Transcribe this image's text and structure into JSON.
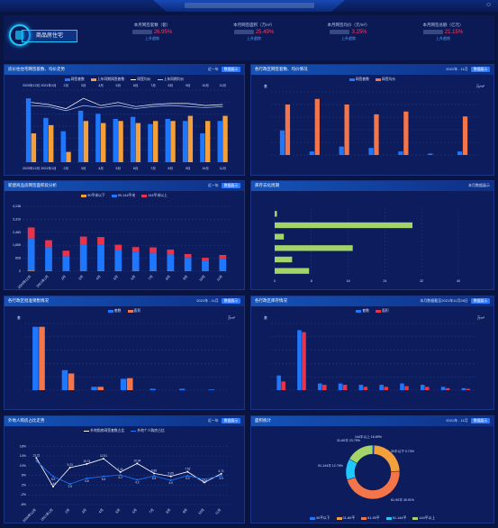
{
  "header": {
    "brand": "商品房住宅",
    "kpis": [
      {
        "label": "本月网签套数（套）",
        "value": "26.95%",
        "tag": "上升趋势"
      },
      {
        "label": "本月网签面积（万m²）",
        "value": "25.49%",
        "tag": "上升趋势"
      },
      {
        "label": "本月网签均价（元/m²）",
        "value": "3.25%",
        "tag": "上升趋势"
      },
      {
        "label": "本月网签总额（亿元）",
        "value": "21.15%",
        "tag": "上升趋势"
      }
    ]
  },
  "panels": {
    "p1": {
      "title": "房价住住宅网签套数、均价走势",
      "right": "近一年",
      "btn": "数据展示",
      "legend": [
        "网签套数",
        "上年同期网签套数",
        "网签均价",
        "上年同期均价"
      ]
    },
    "p2": {
      "title": "各行政区网签套数、均价情况",
      "right": "2021年 - 11月",
      "btn": "数据展示",
      "legend": [
        "网签套数",
        "网签均价"
      ],
      "unit_left": "套",
      "unit_right": "元/m²"
    },
    "p3": {
      "title": "新建商品房网签面积段分析",
      "right": "近一年",
      "btn": "数据展示",
      "legend": [
        "90平米以下",
        "90-144平米",
        "144平米以上"
      ]
    },
    "p4": {
      "title": "库存去化周期",
      "right": "本月数据展示"
    },
    "p5": {
      "title": "各行政区批准销售情况",
      "right": "2021年 - 11月",
      "btn": "数据展示",
      "legend": [
        "套数",
        "面积"
      ],
      "unit_left": "套",
      "unit_right": "万m²"
    },
    "p6": {
      "title": "各行政区库存情况",
      "right": "本月数据截至2021年11月28日",
      "btn": "数据展示",
      "legend": [
        "套数",
        "面积"
      ],
      "unit_left": "套",
      "unit_right": "万m²"
    },
    "p7": {
      "title": "外地人购房占比走势",
      "right": "近一年",
      "btn": "数据展示",
      "legend": [
        "外地购房网签套数占比",
        "外地个人购房占比"
      ]
    },
    "p8": {
      "title": "面积统计",
      "right": "2021年 - 11月",
      "btn": "数据展示",
      "legend": [
        "30平以下",
        "31-60平",
        "61-90平",
        "91-144平",
        "144平以上"
      ]
    }
  },
  "chart_data": [
    {
      "type": "bar",
      "title": "房价住住宅网签套数、均价走势",
      "categories": [
        "2020年12月",
        "2021年1月",
        "2月",
        "3月",
        "4月",
        "5月",
        "6月",
        "7月",
        "8月",
        "9月",
        "10月",
        "11月"
      ],
      "series": [
        {
          "name": "网签套数",
          "values": [
            62,
            43,
            30,
            50,
            47,
            42,
            44,
            37,
            42,
            40,
            28,
            40
          ]
        },
        {
          "name": "上年同期网签套数",
          "values": [
            28,
            36,
            10,
            40,
            38,
            40,
            38,
            40,
            40,
            45,
            40,
            45
          ]
        },
        {
          "name": "网签均价",
          "values": [
            58,
            56,
            52,
            62,
            55,
            58,
            54,
            56,
            57,
            57,
            55,
            56
          ]
        },
        {
          "name": "上年同期均价",
          "values": [
            55,
            54,
            50,
            55,
            53,
            55,
            52,
            54,
            55,
            54,
            53,
            54
          ]
        }
      ],
      "colors": [
        "#1e78ff",
        "#f4a03a",
        "#ffffff",
        "#a8c8ff"
      ]
    },
    {
      "type": "bar",
      "title": "各行政区网签套数、均价情况",
      "categories": [
        "",
        "",
        "",
        "",
        "",
        "",
        ""
      ],
      "series": [
        {
          "name": "网签套数",
          "values": [
            35,
            5,
            12,
            10,
            5,
            2,
            5
          ]
        },
        {
          "name": "网签均价",
          "values": [
            72,
            80,
            72,
            58,
            62,
            0,
            55
          ]
        }
      ],
      "colors": [
        "#1e78ff",
        "#f4754a"
      ]
    },
    {
      "type": "bar",
      "title": "新建商品房网签面积段分析",
      "categories": [
        "2020年12月",
        "2021年1月",
        "2月",
        "3月",
        "4月",
        "5月",
        "6月",
        "7月",
        "8月",
        "9月",
        "10月",
        "11月"
      ],
      "ylabels": [
        "0",
        "828",
        "1,655",
        "2,483",
        "3,310",
        "4,138"
      ],
      "series": [
        {
          "name": "90平米以下",
          "values": [
            40,
            20,
            10,
            20,
            20,
            20,
            20,
            20,
            20,
            15,
            15,
            15
          ]
        },
        {
          "name": "90-144平米",
          "values": [
            2050,
            1500,
            940,
            1650,
            1660,
            1300,
            1200,
            1150,
            1050,
            830,
            640,
            800
          ]
        },
        {
          "name": "144平米以上",
          "values": [
            700,
            460,
            360,
            540,
            500,
            370,
            320,
            350,
            310,
            250,
            200,
            220
          ]
        }
      ],
      "ylim": [
        0,
        4138
      ],
      "colors": [
        "#f4a03a",
        "#1e78ff",
        "#e8334a"
      ]
    },
    {
      "type": "bar",
      "title": "库存去化周期",
      "orientation": "horizontal",
      "categories": [
        "",
        "",
        "",
        "",
        "",
        ""
      ],
      "values": [
        0.5,
        30,
        2,
        17,
        3.8,
        7.5
      ],
      "xlabels": [
        "0",
        "8",
        "16",
        "24",
        "32",
        "40"
      ],
      "xlim": [
        0,
        40
      ],
      "color": "#a2d46a"
    },
    {
      "type": "bar",
      "title": "各行政区批准销售情况",
      "categories": [
        "",
        "",
        "",
        "",
        "",
        "",
        ""
      ],
      "series": [
        {
          "name": "套数",
          "values": [
            95,
            30,
            5,
            17,
            2,
            2,
            1
          ]
        },
        {
          "name": "面积",
          "values": [
            95,
            25,
            5,
            18,
            0,
            0,
            0
          ]
        }
      ],
      "colors": [
        "#1e78ff",
        "#f4754a"
      ]
    },
    {
      "type": "bar",
      "title": "各行政区库存情况",
      "categories": [
        "",
        "",
        "",
        "",
        "",
        "",
        "",
        "",
        "",
        ""
      ],
      "series": [
        {
          "name": "套数",
          "values": [
            22,
            90,
            10,
            10,
            8,
            8,
            10,
            8,
            5,
            3
          ]
        },
        {
          "name": "面积",
          "values": [
            13,
            87,
            8,
            8,
            5,
            5,
            6,
            5,
            3,
            2
          ]
        }
      ],
      "colors": [
        "#1e78ff",
        "#e8334a"
      ]
    },
    {
      "type": "line",
      "title": "外地人购房占比走势",
      "categories": [
        "2020年12月",
        "2021年1月",
        "2月",
        "3月",
        "4月",
        "5月",
        "6月",
        "7月",
        "8月",
        "9月",
        "10月",
        "11月"
      ],
      "ylabels": [
        "-6%",
        "-2%",
        "2%",
        "6%",
        "10%",
        "14%",
        "18%"
      ],
      "ylim": [
        -6,
        20
      ],
      "series": [
        {
          "name": "外地购房网签套数占比",
          "values": [
            13.22,
            1.44,
            9.23,
            10.74,
            12.91,
            7.41,
            10.94,
            6.85,
            5.65,
            7.52,
            3.13,
            6.71
          ]
        },
        {
          "name": "外地个人购房占比",
          "values": [
            12.0,
            5.6,
            2.5,
            4.8,
            5.6,
            6.2,
            4.2,
            5.8,
            4.0,
            5.9,
            4.4,
            5.9
          ]
        }
      ],
      "point_labels": [
        [
          "13.22",
          "1.44",
          "9.23",
          "10.74",
          "12.91",
          "7.41",
          "10.94",
          "6.85",
          "5.65",
          "7.52",
          "3.13",
          "6.71"
        ],
        [
          "",
          "5.6",
          "2.5",
          "4.8",
          "5.6",
          "6.2",
          "4.2",
          "5.8",
          "4.0",
          "5.9",
          "4.4",
          "5.9"
        ]
      ],
      "colors": [
        "#ffffff",
        "#1e78ff"
      ]
    },
    {
      "type": "pie",
      "title": "面积统计",
      "categories": [
        "30平以下",
        "31-60平",
        "61-90平",
        "91-144平",
        "144平以上"
      ],
      "values": [
        0.73,
        23.79,
        45.91,
        12.78,
        16.89
      ],
      "labels": [
        "30平以下 0.73%",
        "31-60平 23.79%",
        "61-90平 45.91%",
        "91-144平 12.78%",
        "144平以上 16.89%"
      ],
      "colors": [
        "#1e78ff",
        "#f4a03a",
        "#f4754a",
        "#1ec9ff",
        "#a2d46a"
      ]
    }
  ]
}
